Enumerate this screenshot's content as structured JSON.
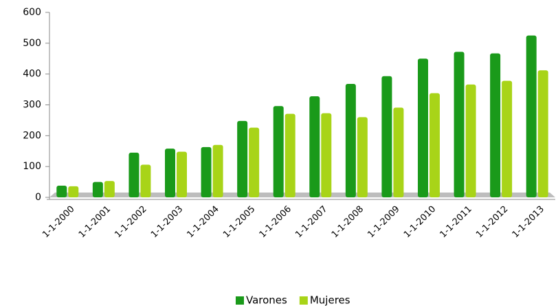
{
  "chart_data": {
    "type": "bar",
    "categories": [
      "1-1-2000",
      "1-1-2001",
      "1-1-2002",
      "1-1-2003",
      "1-1-2004",
      "1-1-2005",
      "1-1-2006",
      "1-1-2007",
      "1-1-2008",
      "1-1-2009",
      "1-1-2010",
      "1-1-2011",
      "1-1-2012",
      "1-1-2013"
    ],
    "series": [
      {
        "name": "Varones",
        "color": "#1a9a1a",
        "values": [
          38,
          50,
          145,
          158,
          163,
          248,
          296,
          328,
          368,
          393,
          450,
          472,
          467,
          525
        ]
      },
      {
        "name": "Mujeres",
        "color": "#a8d418",
        "values": [
          36,
          53,
          106,
          148,
          170,
          226,
          271,
          273,
          260,
          291,
          338,
          366,
          378,
          412
        ]
      }
    ],
    "ylim": [
      0,
      600
    ],
    "yticks": [
      0,
      100,
      200,
      300,
      400,
      500,
      600
    ],
    "legend": "bottom"
  }
}
